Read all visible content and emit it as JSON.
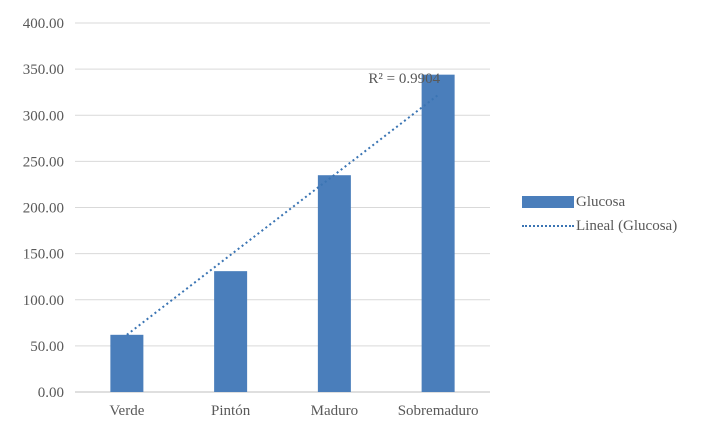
{
  "chart_data": {
    "type": "bar",
    "categories": [
      "Verde",
      "Pintón",
      "Maduro",
      "Sobremaduro"
    ],
    "series": [
      {
        "name": "Glucosa",
        "values": [
          62,
          131,
          235,
          344
        ],
        "color": "#4a7ebb"
      }
    ],
    "trendline": {
      "name": "Lineal (Glucosa)",
      "type": "linear",
      "r_squared_label": "R² = 0.9904",
      "start": 62,
      "end": 322,
      "color": "#3a74b3"
    },
    "y_ticks": [
      "0.00",
      "50.00",
      "100.00",
      "150.00",
      "200.00",
      "250.00",
      "300.00",
      "350.00",
      "400.00"
    ],
    "ylim": [
      0,
      400
    ],
    "grid": true,
    "legend_position": "right"
  },
  "legend": {
    "bar_label": "Glucosa",
    "line_label": "Lineal (Glucosa)"
  }
}
